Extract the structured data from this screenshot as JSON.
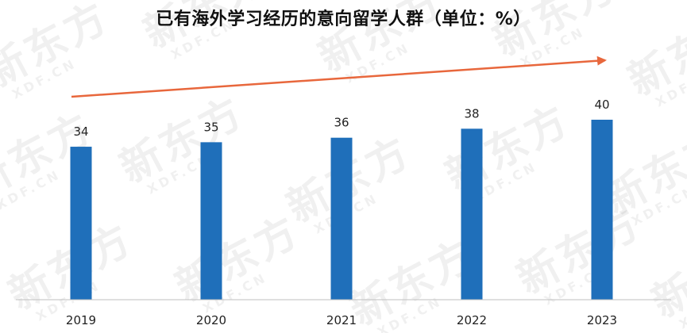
{
  "chart_data": {
    "type": "bar",
    "title": "已有海外学习经历的意向留学人群（单位：%）",
    "categories": [
      "2019",
      "2020",
      "2021",
      "2022",
      "2023"
    ],
    "values": [
      34,
      35,
      36,
      38,
      40
    ],
    "ylim": [
      0,
      45
    ],
    "grid": false,
    "xlabel": "",
    "ylabel": "",
    "colors": {
      "bar": "#1f6fba",
      "trend_arrow": "#e8673c",
      "axis": "#bfbfbf"
    },
    "annotations": [
      {
        "type": "trend-arrow",
        "direction": "up-right"
      }
    ]
  },
  "watermark": {
    "brand": "新东方",
    "domain": "XDF.CN"
  }
}
